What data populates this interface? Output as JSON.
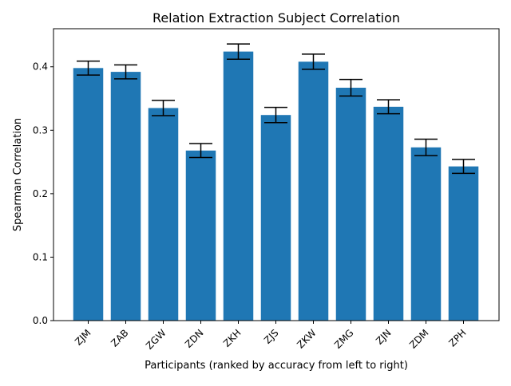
{
  "chart_data": {
    "type": "bar",
    "title": "Relation Extraction Subject Correlation",
    "xlabel": "Participants (ranked by accuracy from left to right)",
    "ylabel": "Spearman Correlation",
    "categories": [
      "ZJM",
      "ZAB",
      "ZGW",
      "ZDN",
      "ZKH",
      "ZJS",
      "ZKW",
      "ZMG",
      "ZJN",
      "ZDM",
      "ZPH"
    ],
    "values": [
      0.398,
      0.392,
      0.335,
      0.268,
      0.424,
      0.324,
      0.408,
      0.367,
      0.337,
      0.273,
      0.243
    ],
    "errors": [
      0.011,
      0.011,
      0.012,
      0.011,
      0.012,
      0.012,
      0.012,
      0.013,
      0.011,
      0.013,
      0.011
    ],
    "ylim": [
      0,
      0.46
    ],
    "yticks": [
      0.0,
      0.1,
      0.2,
      0.3,
      0.4
    ],
    "ytick_labels": [
      "0.0",
      "0.1",
      "0.2",
      "0.3",
      "0.4"
    ],
    "bar_color": "#1f77b4",
    "error_color": "#000000",
    "grid": false
  }
}
